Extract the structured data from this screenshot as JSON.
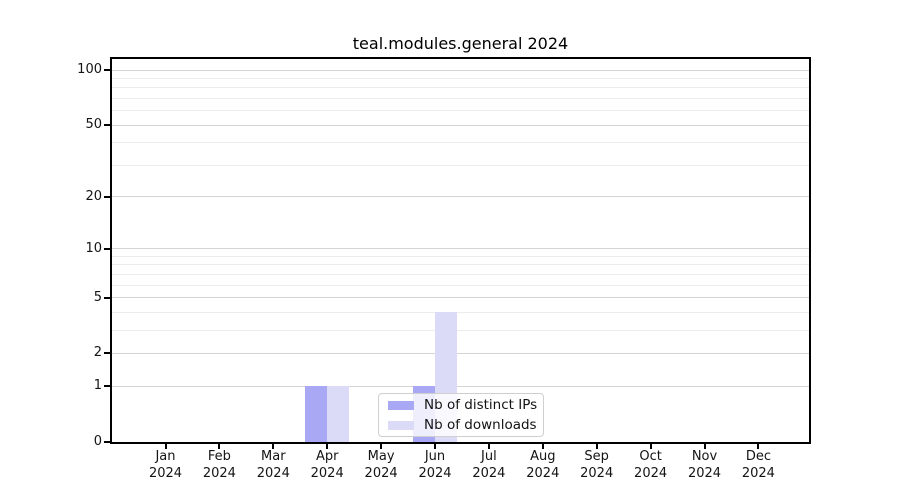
{
  "chart_data": {
    "type": "bar",
    "title": "teal.modules.general 2024",
    "categories": [
      "Jan",
      "Feb",
      "Mar",
      "Apr",
      "May",
      "Jun",
      "Jul",
      "Aug",
      "Sep",
      "Oct",
      "Nov",
      "Dec"
    ],
    "x_year_label": "2024",
    "series": [
      {
        "name": "Nb of distinct IPs",
        "color": "#a8a8f5",
        "values": [
          0,
          0,
          0,
          1,
          0,
          1,
          0,
          0,
          0,
          0,
          0,
          0
        ]
      },
      {
        "name": "Nb of downloads",
        "color": "#dbdbf8",
        "values": [
          0,
          0,
          0,
          1,
          0,
          4,
          0,
          0,
          0,
          0,
          0,
          0
        ]
      }
    ],
    "y_scale": "log1p",
    "ylim": [
      0,
      100
    ],
    "y_major_ticks": [
      0,
      1,
      2,
      5,
      10,
      20,
      50,
      100
    ],
    "y_minor_gridlines": [
      3,
      4,
      6,
      7,
      8,
      9,
      30,
      40,
      60,
      70,
      80,
      90
    ],
    "grid": true,
    "legend_position": "bottom-center",
    "xlabel": "",
    "ylabel": ""
  },
  "colors": {
    "grid_major": "#d4d4d4",
    "grid_minor": "#ececec",
    "spine": "#000000",
    "legend_border": "#cfcfcf",
    "background": "#ffffff"
  }
}
